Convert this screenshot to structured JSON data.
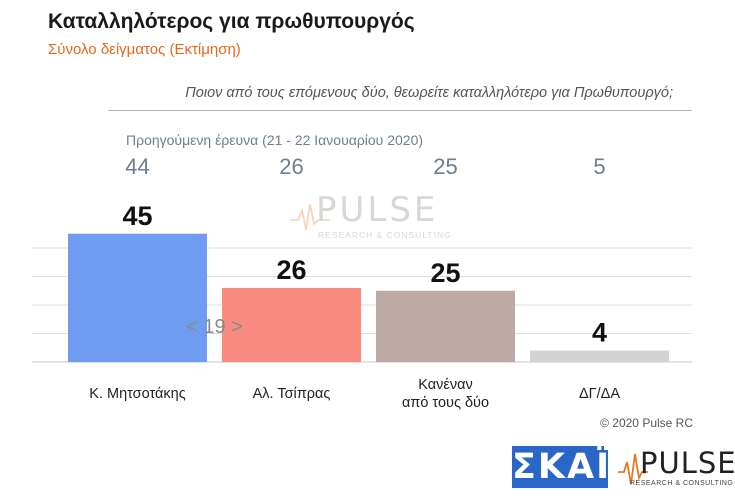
{
  "header": {
    "title": "Καταλληλότερος για πρωθυπουργός",
    "subtitle": "Σύνολο δείγματος   (Εκτίμηση)",
    "question": "Ποιον από τους επόμενους δύο, θεωρείτε καταλληλότερο για Πρωθυπουργό;"
  },
  "previous_survey_label": "Προηγούμενη έρευνα  (21 - 22 Ιανουαρίου  2020)",
  "chart_data": {
    "type": "bar",
    "categories": [
      [
        "Κ. Μητσοτάκης"
      ],
      [
        "Αλ. Τσίπρας"
      ],
      [
        "Κανέναν",
        "από τους δύο"
      ],
      [
        "ΔΓ/ΔΑ"
      ]
    ],
    "values": [
      45,
      26,
      25,
      4
    ],
    "previous_values": [
      44,
      26,
      25,
      5
    ],
    "colors": [
      "#6f9cf0",
      "#f98b80",
      "#bdaaa5",
      "#d3d3d3"
    ],
    "annotations": [
      {
        "text": "< 19 >"
      }
    ],
    "ylim": [
      0,
      60
    ],
    "grid": true,
    "gridline_values": [
      0,
      10,
      20,
      30,
      40
    ]
  },
  "footer": {
    "copyright": "© 2020 Pulse RC"
  },
  "logos": {
    "skai": "ΣΚΑΪ",
    "pulse_name": "PULSE",
    "pulse_tagline": "RESEARCH & CONSULTING"
  },
  "watermark": {
    "name": "PULSE",
    "tagline": "RESEARCH & CONSULTING"
  }
}
